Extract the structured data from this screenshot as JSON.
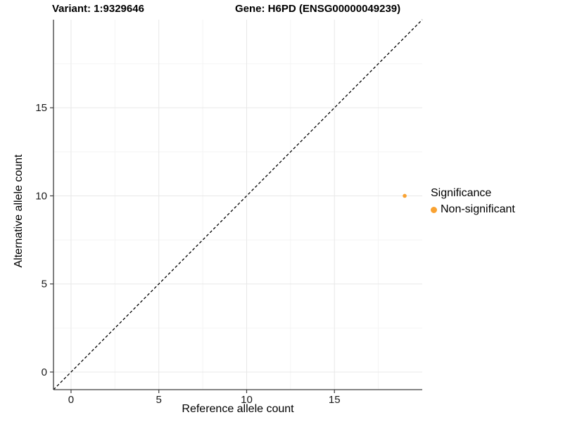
{
  "titles": {
    "variant": "Variant: 1:9329646",
    "gene": "Gene: H6PD (ENSG00000049239)"
  },
  "axes": {
    "x_label": "Reference allele count",
    "y_label": "Alternative allele count"
  },
  "legend": {
    "title": "Significance",
    "entries": [
      {
        "label": "Non-significant",
        "color": "#F9A232"
      }
    ]
  },
  "colors": {
    "point": "#F9A232",
    "axis_line": "#3c3c3c",
    "grid_major": "#e8e8e8",
    "grid_minor": "#f4f4f4",
    "identity_line": "#000000",
    "tick_text": "#1a1a1a",
    "background": "#ffffff"
  },
  "chart_data": {
    "type": "scatter",
    "title": "Variant: 1:9329646   Gene: H6PD (ENSG00000049239)",
    "xlabel": "Reference allele count",
    "ylabel": "Alternative allele count",
    "xlim": [
      -1,
      20
    ],
    "ylim": [
      -1,
      20
    ],
    "x_ticks": [
      0,
      5,
      10,
      15
    ],
    "y_ticks": [
      0,
      5,
      10,
      15
    ],
    "x_minor_ticks": [
      2.5,
      7.5,
      12.5,
      17.5
    ],
    "y_minor_ticks": [
      2.5,
      7.5,
      12.5,
      17.5
    ],
    "grid": true,
    "legend_position": "right",
    "identity_line": {
      "show": true,
      "style": "dashed",
      "slope": 1,
      "intercept": 0
    },
    "series": [
      {
        "name": "Non-significant",
        "color": "#F9A232",
        "points": [
          {
            "x": 19,
            "y": 10
          }
        ]
      }
    ]
  }
}
